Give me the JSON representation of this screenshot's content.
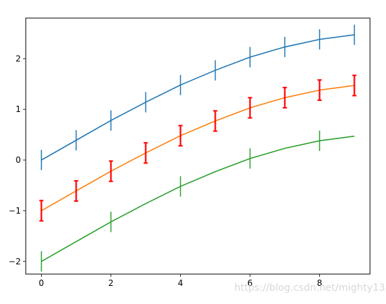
{
  "chart_data": {
    "type": "line",
    "title": "",
    "xlabel": "",
    "ylabel": "",
    "xlim": [
      -0.45,
      9.45
    ],
    "ylim": [
      -2.25,
      2.8
    ],
    "xticks": [
      0,
      2,
      4,
      6,
      8
    ],
    "yticks": [
      -2,
      -1,
      0,
      1,
      2
    ],
    "grid": false,
    "legend": "none",
    "series": [
      {
        "color": "#1f77b4",
        "errorbar_color": "#1f77b4",
        "errorbar_width": "thin",
        "x": [
          0,
          1,
          2,
          3,
          4,
          5,
          6,
          7,
          8,
          9
        ],
        "y": [
          0.0,
          0.39,
          0.78,
          1.14,
          1.48,
          1.77,
          2.03,
          2.23,
          2.38,
          2.47
        ],
        "errorbar_x": [
          0,
          1,
          2,
          3,
          4,
          5,
          6,
          7,
          8,
          9
        ],
        "errorbar_half": 0.2
      },
      {
        "color": "#ff7f0e",
        "errorbar_color": "#ff0000",
        "errorbar_width": "thick",
        "x": [
          0,
          1,
          2,
          3,
          4,
          5,
          6,
          7,
          8,
          9
        ],
        "y": [
          -1.0,
          -0.61,
          -0.22,
          0.14,
          0.48,
          0.77,
          1.03,
          1.23,
          1.38,
          1.47
        ],
        "errorbar_x": [
          0,
          1,
          2,
          3,
          4,
          5,
          6,
          7,
          8,
          9
        ],
        "errorbar_half": 0.2
      },
      {
        "color": "#2ca02c",
        "errorbar_color": "#2ca02c",
        "errorbar_width": "thin",
        "x": [
          0,
          1,
          2,
          3,
          4,
          5,
          6,
          7,
          8,
          9
        ],
        "y": [
          -2.0,
          -1.61,
          -1.22,
          -0.86,
          -0.52,
          -0.23,
          0.03,
          0.23,
          0.38,
          0.47
        ],
        "errorbar_x": [
          0,
          2,
          4,
          6,
          8
        ],
        "errorbar_half": 0.2
      }
    ]
  },
  "watermark": "https://blog.csdn.net/mighty13"
}
